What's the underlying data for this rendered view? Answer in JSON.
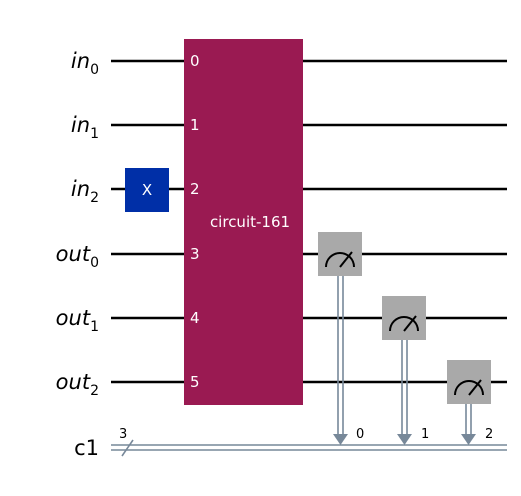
{
  "registers": {
    "quantum": [
      {
        "base": "in",
        "index": "0"
      },
      {
        "base": "in",
        "index": "1"
      },
      {
        "base": "in",
        "index": "2"
      },
      {
        "base": "out",
        "index": "0"
      },
      {
        "base": "out",
        "index": "1"
      },
      {
        "base": "out",
        "index": "2"
      }
    ],
    "classical": {
      "name": "c1",
      "width": "3"
    }
  },
  "gates": {
    "x_gate": {
      "label": "X",
      "target": "in2",
      "color": "#002fa7"
    },
    "block": {
      "label": "circuit-161",
      "color": "#9a1a52",
      "qubit_labels": [
        "0",
        "1",
        "2",
        "3",
        "4",
        "5"
      ]
    },
    "measure": {
      "color": "#a9a9a9",
      "bit_labels": [
        "0",
        "1",
        "2"
      ]
    }
  },
  "colors": {
    "wire": "#000000",
    "classical_wire": "#778899"
  }
}
